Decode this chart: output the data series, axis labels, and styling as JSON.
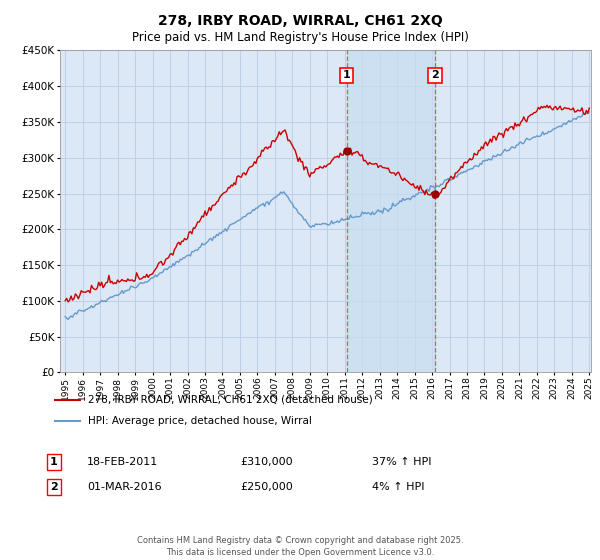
{
  "title": "278, IRBY ROAD, WIRRAL, CH61 2XQ",
  "subtitle": "Price paid vs. HM Land Registry's House Price Index (HPI)",
  "ylim": [
    0,
    450000
  ],
  "yticks": [
    0,
    50000,
    100000,
    150000,
    200000,
    250000,
    300000,
    350000,
    400000,
    450000
  ],
  "line1_color": "#cc0000",
  "line2_color": "#6699cc",
  "background_color": "#ffffff",
  "plot_bg_color": "#dce8f5",
  "grid_color": "#b8cce4",
  "marker1_year": 2011.12,
  "marker2_year": 2016.17,
  "marker1_price": 310000,
  "marker2_price": 250000,
  "legend1": "278, IRBY ROAD, WIRRAL, CH61 2XQ (detached house)",
  "legend2": "HPI: Average price, detached house, Wirral",
  "annotation1_date": "18-FEB-2011",
  "annotation1_price": "£310,000",
  "annotation1_hpi": "37% ↑ HPI",
  "annotation2_date": "01-MAR-2016",
  "annotation2_price": "£250,000",
  "annotation2_hpi": "4% ↑ HPI",
  "footer": "Contains HM Land Registry data © Crown copyright and database right 2025.\nThis data is licensed under the Open Government Licence v3.0.",
  "xstart": 1995,
  "xend": 2025
}
